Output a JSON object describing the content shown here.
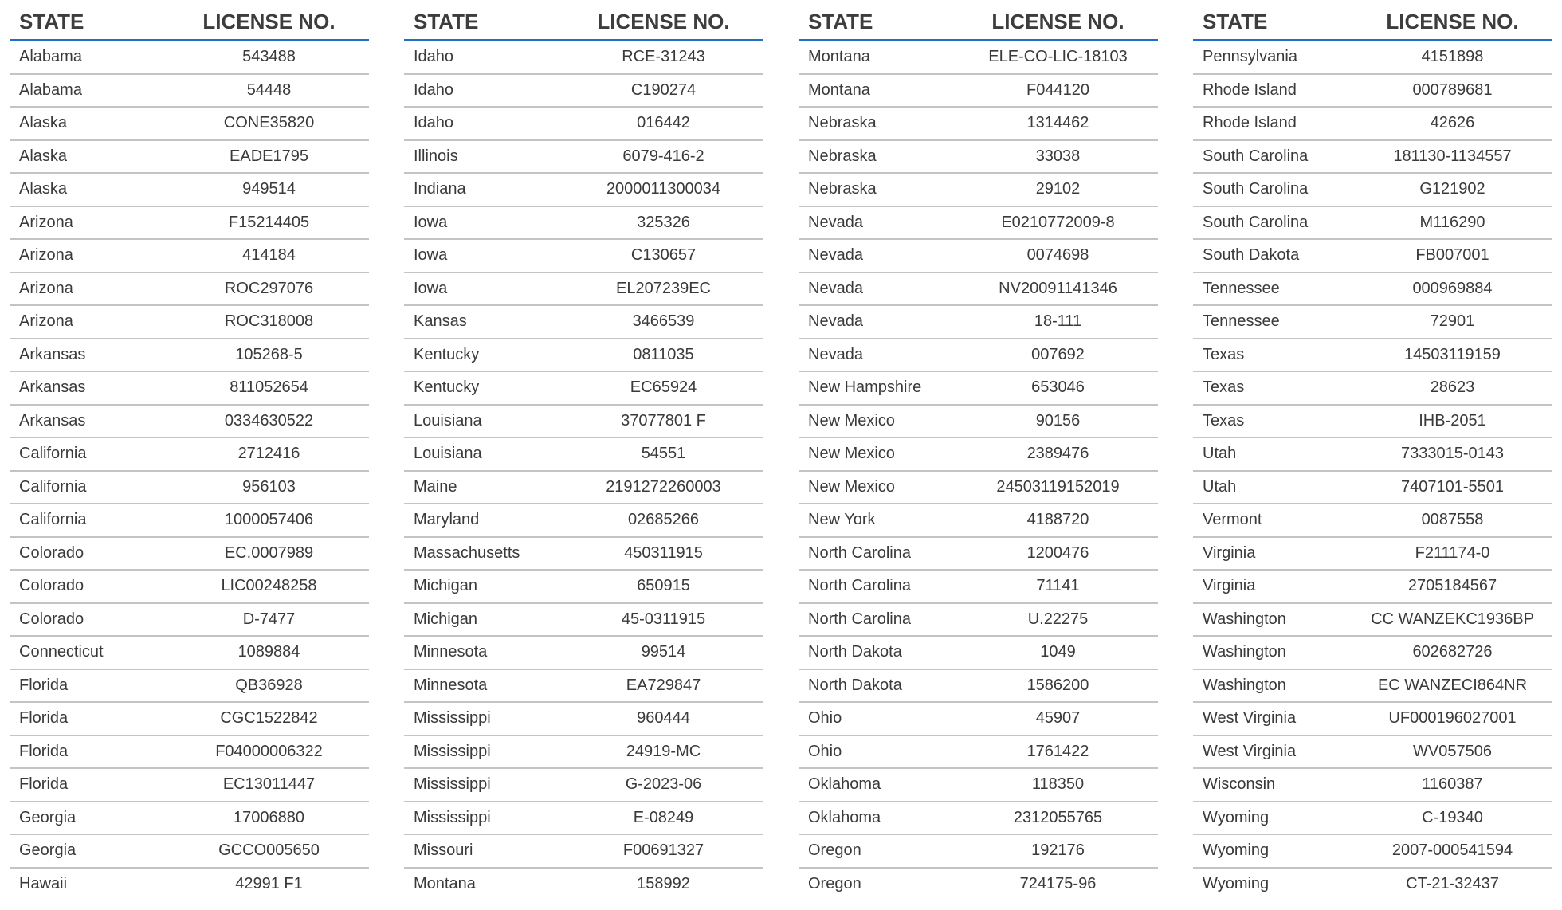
{
  "headers": {
    "state": "STATE",
    "license": "LICENSE NO."
  },
  "colors": {
    "accent": "#1f6fc4",
    "text": "#3a3a3a",
    "divider": "#c4c4c4"
  },
  "columns": [
    [
      [
        "Alabama",
        "543488"
      ],
      [
        "Alabama",
        "54448"
      ],
      [
        "Alaska",
        "CONE35820"
      ],
      [
        "Alaska",
        "EADE1795"
      ],
      [
        "Alaska",
        "949514"
      ],
      [
        "Arizona",
        "F15214405"
      ],
      [
        "Arizona",
        "414184"
      ],
      [
        "Arizona",
        "ROC297076"
      ],
      [
        "Arizona",
        "ROC318008"
      ],
      [
        "Arkansas",
        "105268-5"
      ],
      [
        "Arkansas",
        "811052654"
      ],
      [
        "Arkansas",
        "0334630522"
      ],
      [
        "California",
        "2712416"
      ],
      [
        "California",
        "956103"
      ],
      [
        "California",
        "1000057406"
      ],
      [
        "Colorado",
        "EC.0007989"
      ],
      [
        "Colorado",
        "LIC00248258"
      ],
      [
        "Colorado",
        "D-7477"
      ],
      [
        "Connecticut",
        "1089884"
      ],
      [
        "Florida",
        "QB36928"
      ],
      [
        "Florida",
        "CGC1522842"
      ],
      [
        "Florida",
        "F04000006322"
      ],
      [
        "Florida",
        "EC13011447"
      ],
      [
        "Georgia",
        "17006880"
      ],
      [
        "Georgia",
        "GCCO005650"
      ],
      [
        "Hawaii",
        "42991 F1"
      ]
    ],
    [
      [
        "Idaho",
        "RCE-31243"
      ],
      [
        "Idaho",
        "C190274"
      ],
      [
        "Idaho",
        "016442"
      ],
      [
        "Illinois",
        "6079-416-2"
      ],
      [
        "Indiana",
        "2000011300034"
      ],
      [
        "Iowa",
        "325326"
      ],
      [
        "Iowa",
        "C130657"
      ],
      [
        "Iowa",
        "EL207239EC"
      ],
      [
        "Kansas",
        "3466539"
      ],
      [
        "Kentucky",
        "0811035"
      ],
      [
        "Kentucky",
        "EC65924"
      ],
      [
        "Louisiana",
        "37077801 F"
      ],
      [
        "Louisiana",
        "54551"
      ],
      [
        "Maine",
        "2191272260003"
      ],
      [
        "Maryland",
        "02685266"
      ],
      [
        "Massachusetts",
        "450311915"
      ],
      [
        "Michigan",
        "650915"
      ],
      [
        "Michigan",
        "45-0311915"
      ],
      [
        "Minnesota",
        "99514"
      ],
      [
        "Minnesota",
        "EA729847"
      ],
      [
        "Mississippi",
        "960444"
      ],
      [
        "Mississippi",
        "24919-MC"
      ],
      [
        "Mississippi",
        "G-2023-06"
      ],
      [
        "Mississippi",
        "E-08249"
      ],
      [
        "Missouri",
        "F00691327"
      ],
      [
        "Montana",
        "158992"
      ]
    ],
    [
      [
        "Montana",
        "ELE-CO-LIC-18103"
      ],
      [
        "Montana",
        "F044120"
      ],
      [
        "Nebraska",
        "1314462"
      ],
      [
        "Nebraska",
        "33038"
      ],
      [
        "Nebraska",
        "29102"
      ],
      [
        "Nevada",
        "E0210772009-8"
      ],
      [
        "Nevada",
        "0074698"
      ],
      [
        "Nevada",
        "NV20091141346"
      ],
      [
        "Nevada",
        "18-111"
      ],
      [
        "Nevada",
        "007692"
      ],
      [
        "New Hampshire",
        "653046"
      ],
      [
        "New Mexico",
        "90156"
      ],
      [
        "New Mexico",
        "2389476"
      ],
      [
        "New Mexico",
        "24503119152019"
      ],
      [
        "New York",
        "4188720"
      ],
      [
        "North Carolina",
        "1200476"
      ],
      [
        "North Carolina",
        "71141"
      ],
      [
        "North Carolina",
        "U.22275"
      ],
      [
        "North Dakota",
        "1049"
      ],
      [
        "North Dakota",
        "1586200"
      ],
      [
        "Ohio",
        "45907"
      ],
      [
        "Ohio",
        "1761422"
      ],
      [
        "Oklahoma",
        "118350"
      ],
      [
        "Oklahoma",
        "2312055765"
      ],
      [
        "Oregon",
        "192176"
      ],
      [
        "Oregon",
        "724175-96"
      ]
    ],
    [
      [
        "Pennsylvania",
        "4151898"
      ],
      [
        "Rhode Island",
        "000789681"
      ],
      [
        "Rhode Island",
        "42626"
      ],
      [
        "South Carolina",
        "181130-1134557"
      ],
      [
        "South Carolina",
        "G121902"
      ],
      [
        "South Carolina",
        "M116290"
      ],
      [
        "South Dakota",
        "FB007001"
      ],
      [
        "Tennessee",
        "000969884"
      ],
      [
        "Tennessee",
        "72901"
      ],
      [
        "Texas",
        "14503119159"
      ],
      [
        "Texas",
        "28623"
      ],
      [
        "Texas",
        "IHB-2051"
      ],
      [
        "Utah",
        "7333015-0143"
      ],
      [
        "Utah",
        "7407101-5501"
      ],
      [
        "Vermont",
        "0087558"
      ],
      [
        "Virginia",
        "F211174-0"
      ],
      [
        "Virginia",
        "2705184567"
      ],
      [
        "Washington",
        "CC WANZEKC1936BP"
      ],
      [
        "Washington",
        "602682726"
      ],
      [
        "Washington",
        "EC WANZECI864NR"
      ],
      [
        "West Virginia",
        "UF000196027001"
      ],
      [
        "West Virginia",
        "WV057506"
      ],
      [
        "Wisconsin",
        "1160387"
      ],
      [
        "Wyoming",
        "C-19340"
      ],
      [
        "Wyoming",
        "2007-000541594"
      ],
      [
        "Wyoming",
        "CT-21-32437"
      ]
    ]
  ]
}
